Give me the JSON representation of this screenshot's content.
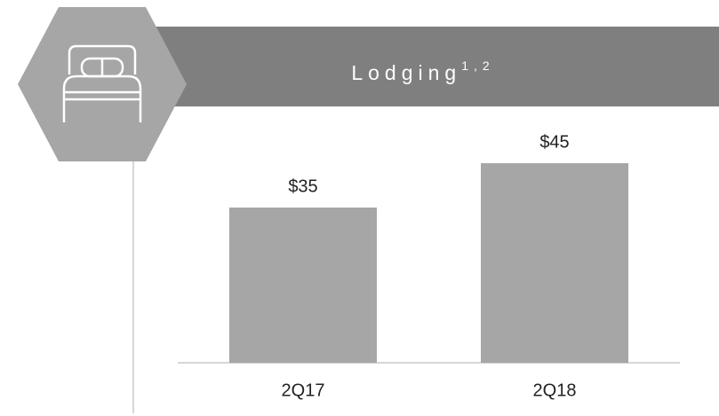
{
  "chart_data": {
    "type": "bar",
    "title": "Lodging",
    "title_note": "1,2",
    "categories": [
      "2Q17",
      "2Q18"
    ],
    "values": [
      35,
      45
    ],
    "value_labels": [
      "$35",
      "$45"
    ],
    "color": "#a6a6a6"
  }
}
